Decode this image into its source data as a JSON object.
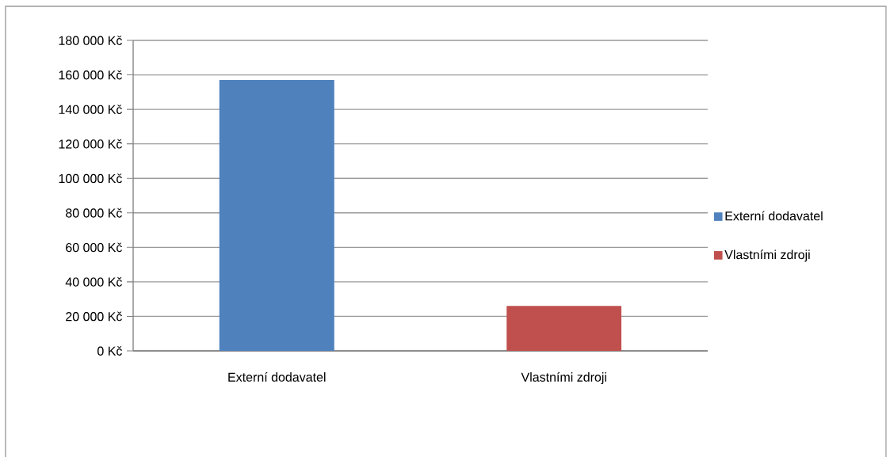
{
  "chart_data": {
    "type": "bar",
    "categories": [
      "Externí dodavatel",
      "Vlastními zdroji"
    ],
    "series": [
      {
        "name": "Externí dodavatel",
        "color": "#4f81bd",
        "values": [
          157000,
          null
        ]
      },
      {
        "name": "Vlastními zdroji",
        "color": "#c0504d",
        "values": [
          null,
          26000
        ]
      }
    ],
    "ylim": [
      0,
      180000
    ],
    "yticks": [
      {
        "value": 0,
        "label": "0 Kč"
      },
      {
        "value": 20000,
        "label": "20 000 Kč"
      },
      {
        "value": 40000,
        "label": "40 000 Kč"
      },
      {
        "value": 60000,
        "label": "60 000 Kč"
      },
      {
        "value": 80000,
        "label": "80 000 Kč"
      },
      {
        "value": 100000,
        "label": "100 000 Kč"
      },
      {
        "value": 120000,
        "label": "120 000 Kč"
      },
      {
        "value": 140000,
        "label": "140 000 Kč"
      },
      {
        "value": 160000,
        "label": "160 000 Kč"
      },
      {
        "value": 180000,
        "label": "180 000 Kč"
      }
    ],
    "grid": "y",
    "legend": "right"
  }
}
